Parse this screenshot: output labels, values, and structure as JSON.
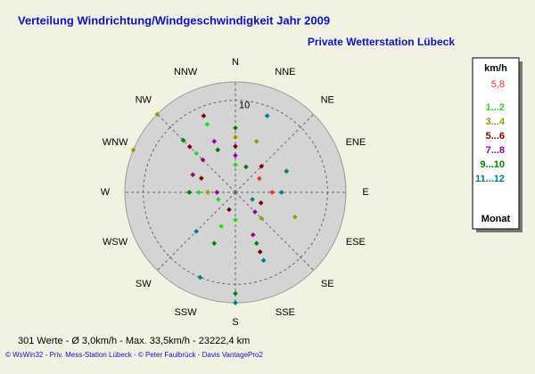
{
  "chart_data": {
    "type": "polar_scatter",
    "title": "Verteilung Windrichtung/Windgeschwindigkeit  Jahr 2009",
    "subtitle": "Private Wetterstation Lübeck",
    "directions": [
      "N",
      "NNE",
      "NE",
      "ENE",
      "E",
      "ESE",
      "SE",
      "SSE",
      "S",
      "SSW",
      "SW",
      "WSW",
      "W",
      "WNW",
      "NW",
      "NNW"
    ],
    "rlim": [
      0,
      12
    ],
    "rticks": [
      10
    ],
    "grid": true,
    "legend_title": "km/h",
    "legend_footer": "Monat",
    "series": [
      {
        "name": "5,8",
        "color": "#ee3333",
        "x": [
          67.5,
          90,
          60
        ],
        "values": [
          6,
          4,
          3
        ]
      },
      {
        "name": "1...2",
        "color": "#22dd22",
        "x": [
          337.5,
          315,
          292.5,
          0,
          180,
          202.5,
          270,
          247.5
        ],
        "values": [
          8,
          6,
          5,
          3,
          3,
          4,
          4,
          2
        ]
      },
      {
        "name": "3...4",
        "color": "#999900",
        "x": [
          315,
          292.5,
          112.5,
          135,
          22.5,
          0,
          270,
          337.5
        ],
        "values": [
          12,
          12,
          7,
          4,
          6,
          6,
          3,
          5
        ]
      },
      {
        "name": "5...6",
        "color": "#800000",
        "x": [
          337.5,
          315,
          0,
          45,
          157.5,
          112.5,
          292.5,
          200
        ],
        "values": [
          9,
          7,
          5,
          4,
          7,
          3,
          4,
          2
        ]
      },
      {
        "name": "7...8",
        "color": "#990099",
        "x": [
          157.5,
          292.5,
          315,
          0,
          270,
          337.5,
          135
        ],
        "values": [
          5,
          5,
          5,
          4,
          2,
          6,
          3
        ]
      },
      {
        "name": "9...10",
        "color": "#008000",
        "x": [
          180,
          157.5,
          202.5,
          270,
          315,
          337.5,
          0,
          22.5
        ],
        "values": [
          11,
          6,
          6,
          5,
          8,
          5,
          7,
          3
        ]
      },
      {
        "name": "11...12",
        "color": "#008080",
        "x": [
          180,
          202.5,
          157.5,
          225,
          90,
          67.5,
          22.5,
          112.5
        ],
        "values": [
          12,
          10,
          8,
          6,
          5,
          6,
          9,
          2
        ]
      }
    ],
    "footer": "301 Werte   -   Ø 3,0km/h  -  Max. 33,5km/h   -   23222,4 km",
    "credits": "© WsWin32   -   Priv. Mess-Station Lübeck   -   © Peter Faulbrück - Davis VantagePro2"
  }
}
